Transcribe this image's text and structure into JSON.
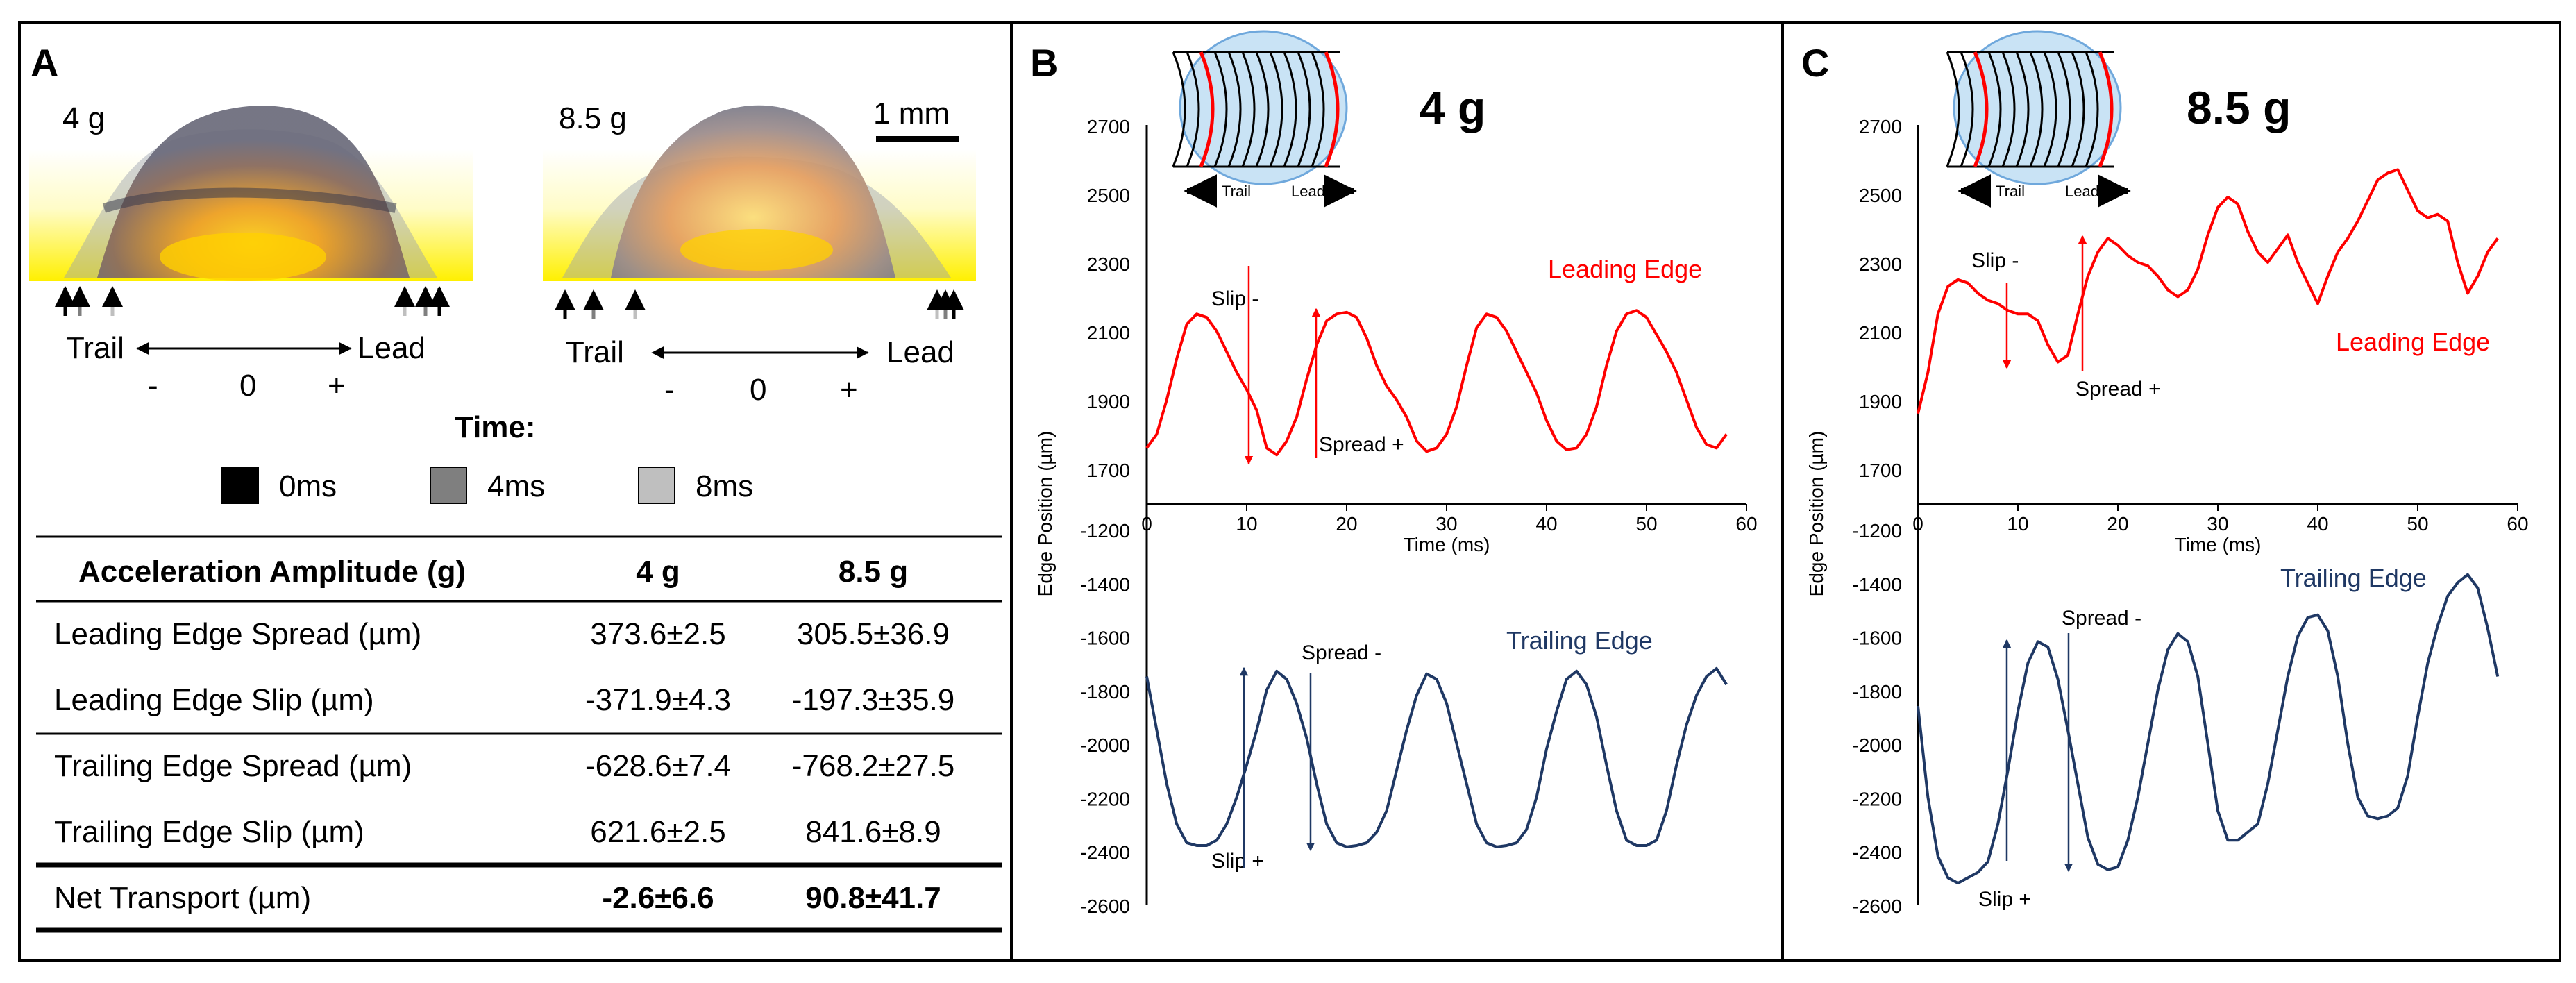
{
  "panel_a": {
    "letter": "A",
    "img_left_label": "4 g",
    "img_right_label": "8.5 g",
    "scale_bar_label": "1 mm",
    "axis_left": {
      "trail": "Trail",
      "lead": "Lead",
      "minus": "-",
      "zero": "0",
      "plus": "+"
    },
    "axis_right": {
      "trail": "Trail",
      "lead": "Lead",
      "minus": "-",
      "zero": "0",
      "plus": "+"
    },
    "time_title": "Time:",
    "time_legend": [
      {
        "label": "0ms",
        "color": "#000000"
      },
      {
        "label": "4ms",
        "color": "#7f7f7f"
      },
      {
        "label": "8ms",
        "color": "#bfbfbf"
      }
    ]
  },
  "table": {
    "headers": [
      "Acceleration Amplitude (g)",
      "4 g",
      "8.5 g"
    ],
    "rows": [
      [
        "Leading Edge Spread (µm)",
        "373.6±2.5",
        "305.5±36.9"
      ],
      [
        "Leading Edge Slip (µm)",
        "-371.9±4.3",
        "-197.3±35.9"
      ],
      [
        "Trailing Edge Spread (µm)",
        "-628.6±7.4",
        "-768.2±27.5"
      ],
      [
        "Trailing Edge Slip (µm)",
        "621.6±2.5",
        "841.6±8.9"
      ],
      [
        "Net Transport (µm)",
        "-2.6±6.6",
        "90.8±41.7"
      ]
    ]
  },
  "colors": {
    "leading": "#ff0000",
    "trailing": "#1f3864",
    "droplet_fill": "#c9e3f5",
    "droplet_stroke": "#6fa8dc"
  },
  "chart_data": [
    {
      "panel": "B",
      "type": "line",
      "title": "4 g",
      "xlabel": "Time (ms)",
      "ylabel": "Edge Position (µm)",
      "xlim": [
        0,
        60
      ],
      "xticks": [
        0,
        10,
        20,
        30,
        40,
        50,
        60
      ],
      "top_yticks": [
        1700,
        1900,
        2100,
        2300,
        2500,
        2700
      ],
      "bottom_yticks": [
        -1200,
        -1400,
        -1600,
        -1800,
        -2000,
        -2200,
        -2400,
        -2600
      ],
      "top_ylim": [
        1700,
        2700
      ],
      "bottom_ylim": [
        -2600,
        -1200
      ],
      "inset": {
        "trail": "Trail",
        "lead": "Lead"
      },
      "series": [
        {
          "name": "Leading Edge",
          "color": "#ff0000",
          "x": [
            0,
            1,
            2,
            3,
            4,
            5,
            6,
            7,
            8,
            9,
            10,
            11,
            12,
            13,
            14,
            15,
            16,
            17,
            18,
            19,
            20,
            21,
            22,
            23,
            24,
            25,
            26,
            27,
            28,
            29,
            30,
            31,
            32,
            33,
            34,
            35,
            36,
            37,
            38,
            39,
            40,
            41,
            42,
            43,
            44,
            45,
            46,
            47,
            48,
            49,
            50,
            51,
            52,
            53,
            54,
            55,
            56,
            57,
            58
          ],
          "y": [
            1760,
            1800,
            1900,
            2020,
            2120,
            2150,
            2140,
            2100,
            2040,
            1980,
            1930,
            1870,
            1760,
            1740,
            1780,
            1850,
            1960,
            2060,
            2130,
            2150,
            2155,
            2140,
            2080,
            2000,
            1940,
            1900,
            1850,
            1780,
            1750,
            1760,
            1800,
            1880,
            2000,
            2110,
            2150,
            2140,
            2100,
            2040,
            1980,
            1920,
            1840,
            1780,
            1755,
            1760,
            1800,
            1880,
            2000,
            2100,
            2150,
            2160,
            2140,
            2090,
            2040,
            1980,
            1900,
            1820,
            1770,
            1760,
            1800
          ]
        },
        {
          "name": "Trailing Edge",
          "color": "#1f3864",
          "x": [
            0,
            1,
            2,
            3,
            4,
            5,
            6,
            7,
            8,
            9,
            10,
            11,
            12,
            13,
            14,
            15,
            16,
            17,
            18,
            19,
            20,
            21,
            22,
            23,
            24,
            25,
            26,
            27,
            28,
            29,
            30,
            31,
            32,
            33,
            34,
            35,
            36,
            37,
            38,
            39,
            40,
            41,
            42,
            43,
            44,
            45,
            46,
            47,
            48,
            49,
            50,
            51,
            52,
            53,
            54,
            55,
            56,
            57,
            58
          ],
          "y": [
            -1750,
            -1950,
            -2150,
            -2300,
            -2370,
            -2380,
            -2380,
            -2360,
            -2300,
            -2200,
            -2080,
            -1950,
            -1800,
            -1730,
            -1760,
            -1850,
            -1980,
            -2150,
            -2300,
            -2370,
            -2385,
            -2380,
            -2370,
            -2330,
            -2250,
            -2100,
            -1950,
            -1820,
            -1740,
            -1760,
            -1850,
            -2000,
            -2150,
            -2300,
            -2370,
            -2385,
            -2380,
            -2370,
            -2320,
            -2200,
            -2020,
            -1880,
            -1760,
            -1730,
            -1780,
            -1900,
            -2080,
            -2250,
            -2360,
            -2380,
            -2380,
            -2360,
            -2250,
            -2080,
            -1930,
            -1820,
            -1750,
            -1720,
            -1780
          ]
        }
      ],
      "annotations": [
        {
          "text": "Leading Edge",
          "color": "#ff0000"
        },
        {
          "text": "Trailing Edge",
          "color": "#1f3864"
        },
        {
          "text": "Slip -",
          "color": "#000000"
        },
        {
          "text": "Spread +",
          "color": "#000000"
        },
        {
          "text": "Spread -",
          "color": "#000000"
        },
        {
          "text": "Slip +",
          "color": "#000000"
        }
      ]
    },
    {
      "panel": "C",
      "type": "line",
      "title": "8.5 g",
      "xlabel": "Time (ms)",
      "ylabel": "Edge Position (µm)",
      "xlim": [
        0,
        60
      ],
      "xticks": [
        0,
        10,
        20,
        30,
        40,
        50,
        60
      ],
      "top_yticks": [
        1700,
        1900,
        2100,
        2300,
        2500,
        2700
      ],
      "bottom_yticks": [
        -1200,
        -1400,
        -1600,
        -1800,
        -2000,
        -2200,
        -2400,
        -2600
      ],
      "top_ylim": [
        1700,
        2700
      ],
      "bottom_ylim": [
        -2600,
        -1200
      ],
      "inset": {
        "trail": "Trail",
        "lead": "Lead"
      },
      "series": [
        {
          "name": "Leading Edge",
          "color": "#ff0000",
          "x": [
            0,
            1,
            2,
            3,
            4,
            5,
            6,
            7,
            8,
            9,
            10,
            11,
            12,
            13,
            14,
            15,
            16,
            17,
            18,
            19,
            20,
            21,
            22,
            23,
            24,
            25,
            26,
            27,
            28,
            29,
            30,
            31,
            32,
            33,
            34,
            35,
            36,
            37,
            38,
            39,
            40,
            41,
            42,
            43,
            44,
            45,
            46,
            47,
            48,
            49,
            50,
            51,
            52,
            53,
            54,
            55,
            56,
            57,
            58
          ],
          "y": [
            1860,
            1980,
            2150,
            2230,
            2250,
            2240,
            2210,
            2190,
            2180,
            2160,
            2150,
            2150,
            2130,
            2060,
            2010,
            2030,
            2150,
            2260,
            2330,
            2370,
            2350,
            2320,
            2300,
            2290,
            2260,
            2220,
            2200,
            2220,
            2280,
            2380,
            2460,
            2490,
            2470,
            2390,
            2330,
            2300,
            2340,
            2380,
            2300,
            2240,
            2180,
            2260,
            2330,
            2370,
            2420,
            2480,
            2540,
            2560,
            2570,
            2510,
            2450,
            2430,
            2440,
            2420,
            2300,
            2210,
            2260,
            2330,
            2370
          ]
        },
        {
          "name": "Trailing Edge",
          "color": "#1f3864",
          "x": [
            0,
            1,
            2,
            3,
            4,
            5,
            6,
            7,
            8,
            9,
            10,
            11,
            12,
            13,
            14,
            15,
            16,
            17,
            18,
            19,
            20,
            21,
            22,
            23,
            24,
            25,
            26,
            27,
            28,
            29,
            30,
            31,
            32,
            33,
            34,
            35,
            36,
            37,
            38,
            39,
            40,
            41,
            42,
            43,
            44,
            45,
            46,
            47,
            48,
            49,
            50,
            51,
            52,
            53,
            54,
            55,
            56,
            57,
            58
          ],
          "y": [
            -1860,
            -2200,
            -2420,
            -2500,
            -2520,
            -2500,
            -2480,
            -2440,
            -2300,
            -2100,
            -1880,
            -1700,
            -1620,
            -1640,
            -1760,
            -1950,
            -2150,
            -2350,
            -2450,
            -2470,
            -2460,
            -2360,
            -2200,
            -2000,
            -1800,
            -1650,
            -1590,
            -1620,
            -1750,
            -2000,
            -2250,
            -2360,
            -2360,
            -2330,
            -2300,
            -2150,
            -1950,
            -1750,
            -1600,
            -1530,
            -1520,
            -1580,
            -1750,
            -2000,
            -2200,
            -2270,
            -2280,
            -2270,
            -2240,
            -2120,
            -1900,
            -1700,
            -1560,
            -1450,
            -1400,
            -1370,
            -1420,
            -1570,
            -1750
          ]
        }
      ],
      "annotations": [
        {
          "text": "Leading Edge",
          "color": "#ff0000"
        },
        {
          "text": "Trailing Edge",
          "color": "#1f3864"
        },
        {
          "text": "Slip -",
          "color": "#000000"
        },
        {
          "text": "Spread +",
          "color": "#000000"
        },
        {
          "text": "Spread -",
          "color": "#000000"
        },
        {
          "text": "Slip +",
          "color": "#000000"
        }
      ]
    }
  ]
}
